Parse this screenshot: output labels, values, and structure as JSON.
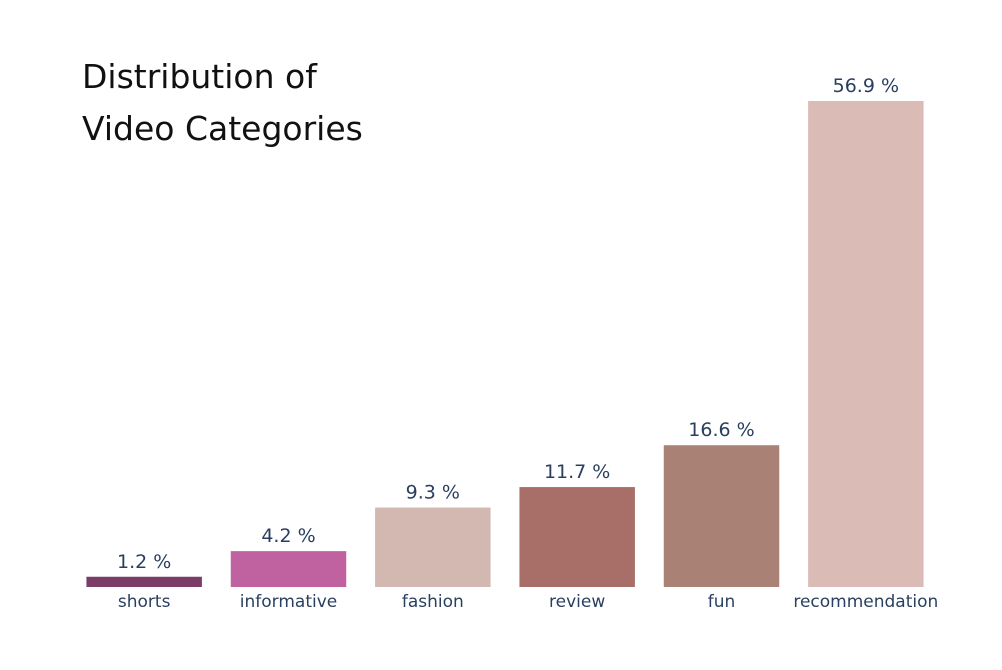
{
  "chart_data": {
    "type": "bar",
    "title": [
      "Distribution of",
      "Video Categories"
    ],
    "xlabel": "",
    "ylabel": "",
    "ylim": [
      0,
      56.9
    ],
    "grid": false,
    "categories": [
      "shorts",
      "informative",
      "fashion",
      "review",
      "fun",
      "recommendation"
    ],
    "values": [
      1.2,
      4.2,
      9.3,
      11.7,
      16.6,
      56.9
    ],
    "value_labels": [
      "1.2 %",
      "4.2 %",
      "9.3 %",
      "11.7 %",
      "16.6 %",
      "56.9 %"
    ],
    "colors": [
      "#7b3c68",
      "#c061a0",
      "#d2b8b0",
      "#a86f68",
      "#a98175",
      "#dbbbb6"
    ]
  }
}
